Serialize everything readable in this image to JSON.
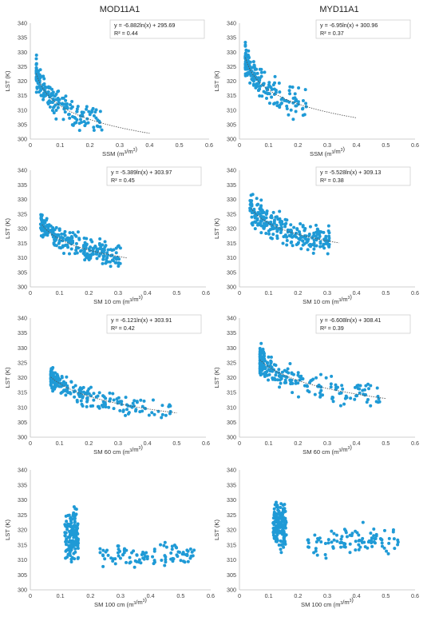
{
  "column_titles": [
    "MOD11A1",
    "MYD11A1"
  ],
  "colors": {
    "points": "#1f9ad6",
    "trend": "#555555"
  },
  "chart_data": [
    {
      "id": "mod-ssm",
      "type": "scatter",
      "ylabel": "LST (K)",
      "xlabel_main": "SSM (m",
      "xlabel_unit": "3",
      "xlabel_mid": "/m",
      "xlabel_end": ")",
      "xlim": [
        0,
        0.6
      ],
      "ylim": [
        300,
        340
      ],
      "xticks": [
        0,
        0.1,
        0.2,
        0.3,
        0.4,
        0.5,
        0.6
      ],
      "yticks": [
        300,
        305,
        310,
        315,
        320,
        325,
        330,
        335,
        340
      ],
      "equation": "y = -6.882ln(x) + 295.69",
      "r2": "R² = 0.44",
      "trend": {
        "a": -6.882,
        "b": 295.69,
        "x_range": [
          0.02,
          0.4
        ]
      },
      "cloud": {
        "seed": 11,
        "n": 190,
        "x_min": 0.02,
        "x_max": 0.24,
        "x_skew": 2.2,
        "noise": 4.0,
        "y_min": 303,
        "y_max": 330
      }
    },
    {
      "id": "myd-ssm",
      "type": "scatter",
      "ylabel": "LST (K)",
      "xlabel_main": "SSM (m",
      "xlabel_unit": "3",
      "xlabel_mid": "/m",
      "xlabel_end": ")",
      "xlim": [
        0,
        0.6
      ],
      "ylim": [
        300,
        340
      ],
      "xticks": [
        0,
        0.1,
        0.2,
        0.3,
        0.4,
        0.5,
        0.6
      ],
      "yticks": [
        300,
        305,
        310,
        315,
        320,
        325,
        330,
        335,
        340
      ],
      "equation": "y = -6.95ln(x) + 300.96",
      "r2": "R² = 0.37",
      "trend": {
        "a": -6.95,
        "b": 300.96,
        "x_range": [
          0.02,
          0.4
        ]
      },
      "cloud": {
        "seed": 23,
        "n": 190,
        "x_min": 0.02,
        "x_max": 0.23,
        "x_skew": 2.2,
        "noise": 4.6,
        "y_min": 304,
        "y_max": 337
      }
    },
    {
      "id": "mod-sm10",
      "type": "scatter",
      "ylabel": "LST (K)",
      "xlabel_main": "SM 10 cm (m",
      "xlabel_unit": "3",
      "xlabel_mid": "/m",
      "xlabel_end": ")",
      "xlim": [
        0,
        0.6
      ],
      "ylim": [
        300,
        340
      ],
      "xticks": [
        0,
        0.1,
        0.2,
        0.3,
        0.4,
        0.5,
        0.6
      ],
      "yticks": [
        300,
        305,
        310,
        315,
        320,
        325,
        330,
        335,
        340
      ],
      "equation": "y = -5.389ln(x) + 303.97",
      "r2": "R² = 0.45",
      "trend": {
        "a": -5.389,
        "b": 303.97,
        "x_range": [
          0.04,
          0.33
        ]
      },
      "cloud": {
        "seed": 37,
        "n": 260,
        "x_min": 0.035,
        "x_max": 0.31,
        "x_skew": 1.3,
        "noise": 3.2,
        "y_min": 303,
        "y_max": 330
      }
    },
    {
      "id": "myd-sm10",
      "type": "scatter",
      "ylabel": "LST (K)",
      "xlabel_main": "SM 10 cm (m",
      "xlabel_unit": "3",
      "xlabel_mid": "/m",
      "xlabel_end": ")",
      "xlim": [
        0,
        0.6
      ],
      "ylim": [
        300,
        340
      ],
      "xticks": [
        0,
        0.1,
        0.2,
        0.3,
        0.4,
        0.5,
        0.6
      ],
      "yticks": [
        300,
        305,
        310,
        315,
        320,
        325,
        330,
        335,
        340
      ],
      "equation": "y = -5.528ln(x) + 309.13",
      "r2": "R² = 0.38",
      "trend": {
        "a": -5.528,
        "b": 309.13,
        "x_range": [
          0.04,
          0.34
        ]
      },
      "cloud": {
        "seed": 41,
        "n": 260,
        "x_min": 0.035,
        "x_max": 0.31,
        "x_skew": 1.3,
        "noise": 4.0,
        "y_min": 304,
        "y_max": 337
      }
    },
    {
      "id": "mod-sm60",
      "type": "scatter",
      "ylabel": "LST (K)",
      "xlabel_main": "SM 60 cm (m",
      "xlabel_unit": "3",
      "xlabel_mid": "/m",
      "xlabel_end": ")",
      "xlim": [
        0,
        0.6
      ],
      "ylim": [
        300,
        340
      ],
      "xticks": [
        0,
        0.1,
        0.2,
        0.3,
        0.4,
        0.5,
        0.6
      ],
      "yticks": [
        300,
        305,
        310,
        315,
        320,
        325,
        330,
        335,
        340
      ],
      "equation": "y = -6.121ln(x) + 303.91",
      "r2": "R² = 0.42",
      "trend": {
        "a": -6.121,
        "b": 303.91,
        "x_range": [
          0.07,
          0.5
        ]
      },
      "cloud": {
        "seed": 53,
        "n": 230,
        "x_min": 0.07,
        "x_max": 0.48,
        "x_skew": 2.6,
        "noise": 3.0,
        "y_min": 304,
        "y_max": 330
      }
    },
    {
      "id": "myd-sm60",
      "type": "scatter",
      "ylabel": "LST (K)",
      "xlabel_main": "SM 60 cm (m",
      "xlabel_unit": "3",
      "xlabel_mid": "/m",
      "xlabel_end": ")",
      "xlim": [
        0,
        0.6
      ],
      "ylim": [
        300,
        340
      ],
      "xticks": [
        0,
        0.1,
        0.2,
        0.3,
        0.4,
        0.5,
        0.6
      ],
      "yticks": [
        300,
        305,
        310,
        315,
        320,
        325,
        330,
        335,
        340
      ],
      "equation": "y = -6.608ln(x) + 308.41",
      "r2": "R² = 0.39",
      "trend": {
        "a": -6.608,
        "b": 308.41,
        "x_range": [
          0.07,
          0.5
        ]
      },
      "cloud": {
        "seed": 67,
        "n": 230,
        "x_min": 0.07,
        "x_max": 0.48,
        "x_skew": 2.6,
        "noise": 3.8,
        "y_min": 304,
        "y_max": 337
      }
    },
    {
      "id": "mod-sm100",
      "type": "scatter",
      "ylabel": "LST (K)",
      "xlabel_main": "SM 100 cm (m",
      "xlabel_unit": "3",
      "xlabel_mid": "/m",
      "xlabel_end": ")",
      "xlim": [
        0,
        0.6
      ],
      "ylim": [
        300,
        340
      ],
      "xticks": [
        0,
        0.1,
        0.2,
        0.3,
        0.4,
        0.5,
        0.6
      ],
      "yticks": [
        300,
        305,
        310,
        315,
        320,
        325,
        330,
        335,
        340
      ],
      "equation": "",
      "r2": "",
      "clusters": [
        {
          "seed": 71,
          "n": 150,
          "x_min": 0.115,
          "x_max": 0.16,
          "y_center": 318,
          "y_spread": 6.5,
          "y_min": 304,
          "y_max": 330
        },
        {
          "seed": 73,
          "n": 100,
          "x_min": 0.23,
          "x_max": 0.545,
          "y_center": 311.5,
          "y_spread": 3.3,
          "y_min": 304,
          "y_max": 319
        }
      ]
    },
    {
      "id": "myd-sm100",
      "type": "scatter",
      "ylabel": "LST (K)",
      "xlabel_main": "SM 100 cm (m",
      "xlabel_unit": "3",
      "xlabel_mid": "/m",
      "xlabel_end": ")",
      "xlim": [
        0,
        0.6
      ],
      "ylim": [
        300,
        340
      ],
      "xticks": [
        0,
        0.1,
        0.2,
        0.3,
        0.4,
        0.5,
        0.6
      ],
      "yticks": [
        300,
        305,
        310,
        315,
        320,
        325,
        330,
        335,
        340
      ],
      "equation": "",
      "r2": "",
      "clusters": [
        {
          "seed": 79,
          "n": 150,
          "x_min": 0.115,
          "x_max": 0.16,
          "y_center": 322,
          "y_spread": 6.5,
          "y_min": 304,
          "y_max": 337
        },
        {
          "seed": 83,
          "n": 100,
          "x_min": 0.23,
          "x_max": 0.545,
          "y_center": 316.5,
          "y_spread": 3.8,
          "y_min": 307,
          "y_max": 327
        }
      ]
    }
  ]
}
